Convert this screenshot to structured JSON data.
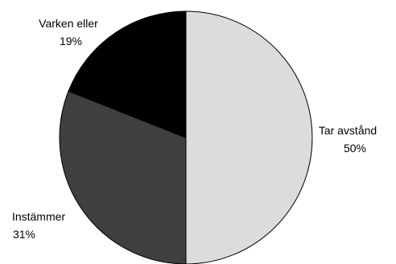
{
  "chart_data": {
    "type": "pie",
    "title": "",
    "start_angle_deg": 0,
    "direction": "clockwise",
    "slices": [
      {
        "label": "Tar avstånd",
        "value": 50,
        "value_label": "50%",
        "color": "#dcdcdc"
      },
      {
        "label": "Instämmer",
        "value": 31,
        "value_label": "31%",
        "color": "#3f3f3f"
      },
      {
        "label": "Varken eller",
        "value": 19,
        "value_label": "19%",
        "color": "#000000"
      }
    ],
    "legend": "none"
  }
}
